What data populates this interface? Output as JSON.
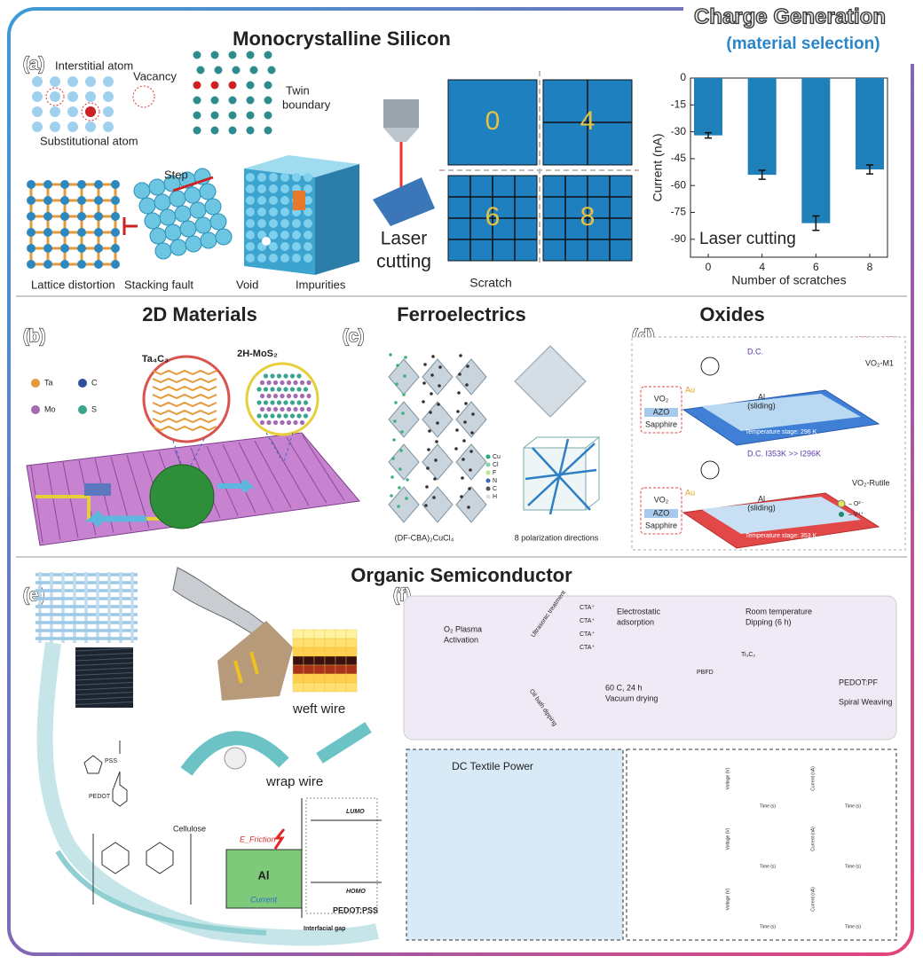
{
  "header": {
    "title": "Charge Generation",
    "subtitle": "(material selection)"
  },
  "sections": {
    "silicon": "Monocrystalline Silicon",
    "two_d": "2D Materials",
    "ferro": "Ferroelectrics",
    "oxides": "Oxides",
    "organic": "Organic Semiconductor"
  },
  "panels": {
    "a": "(a)",
    "b": "(b)",
    "c": "(c)",
    "d": "(d)",
    "e": "(e)",
    "f": "(f)"
  },
  "panel_a": {
    "interstitial": "Interstitial atom",
    "vacancy": "Vacancy",
    "substitutional": "Substitutional atom",
    "twin": [
      "Twin",
      "boundary"
    ],
    "step": "Step",
    "lattice": "Lattice distortion",
    "stacking": "Stacking fault",
    "void": "Void",
    "impurities": "Impurities",
    "laser": [
      "Laser",
      "cutting"
    ],
    "scratch": "Scratch",
    "grid_numbers": [
      "0",
      "4",
      "6",
      "8"
    ]
  },
  "chart_data": {
    "type": "bar",
    "categories": [
      "0",
      "4",
      "6",
      "8"
    ],
    "values": [
      -32,
      -54,
      -81,
      -51
    ],
    "errors": [
      1.5,
      2.5,
      4,
      2.5
    ],
    "color": "#1f7fb8",
    "ylim": [
      -100,
      0
    ],
    "yticks": [
      0,
      -15,
      -30,
      -45,
      -60,
      -75,
      -90
    ],
    "xlabel": "Number of scratches",
    "ylabel": "Current (nA)",
    "annotation": "Laser cutting"
  },
  "panel_b": {
    "ta4c3": "Ta₄C₃",
    "mos2": "2H-MoS₂",
    "legend": [
      "Ta",
      "C",
      "Mo",
      "S"
    ]
  },
  "panel_c": {
    "compound": "(DF-CBA)₂CuCl₄",
    "polarization": "8 polarization directions",
    "legend": [
      "Cu",
      "Cl",
      "F",
      "N",
      "C",
      "H"
    ]
  },
  "panel_d": {
    "dc": "D.C.",
    "dc_ratio": "D.C. I353K >> I296K",
    "au": "Au",
    "al": [
      "Al",
      "(sliding)"
    ],
    "layers": [
      "VO₂",
      "AZO",
      "Sapphire"
    ],
    "stage_cold": "Temperature stage: 296 K",
    "stage_hot": "Temperature stage: 353 K",
    "m1": "VO₂-M1",
    "rutile": "VO₂-Rutile",
    "o_ion": "– O²⁻",
    "v_ion": "– V⁴⁺"
  },
  "panel_e": {
    "pss": "PSS",
    "pedot": "PEDOT",
    "cellulose": "Cellulose",
    "weft": "weft wire",
    "wrap": "wrap wire",
    "lumo": "LUMO",
    "homo": "HOMO",
    "al": "Al",
    "current": "Current",
    "friction": "E_Friction",
    "pedot_pss": "PEDOT:PSS",
    "gap": "Interfacial gap"
  },
  "panel_f": {
    "plasma": [
      "O₂ Plasma",
      "Activation"
    ],
    "ultrasonic": "Ultrasonic treatment",
    "oil": "Oil bath dipping",
    "electrostatic": [
      "Electrostatic",
      "adsorption"
    ],
    "room": [
      "Room temperature",
      "Dipping (6 h)"
    ],
    "cta": "CTA⁺",
    "pbfd": "PBFD",
    "ti3c2": "Ti₃C₂",
    "pedot_pf": "PEDOT:PF",
    "spiral": "Spiral Weaving",
    "vacuum": [
      "60 C, 24 h",
      "Vacuum drying"
    ],
    "dc_power": "DC Textile Power",
    "mini_axes": {
      "voltage": "Voltage (V)",
      "current": "Current (nA)",
      "time": "Time (s)"
    }
  }
}
